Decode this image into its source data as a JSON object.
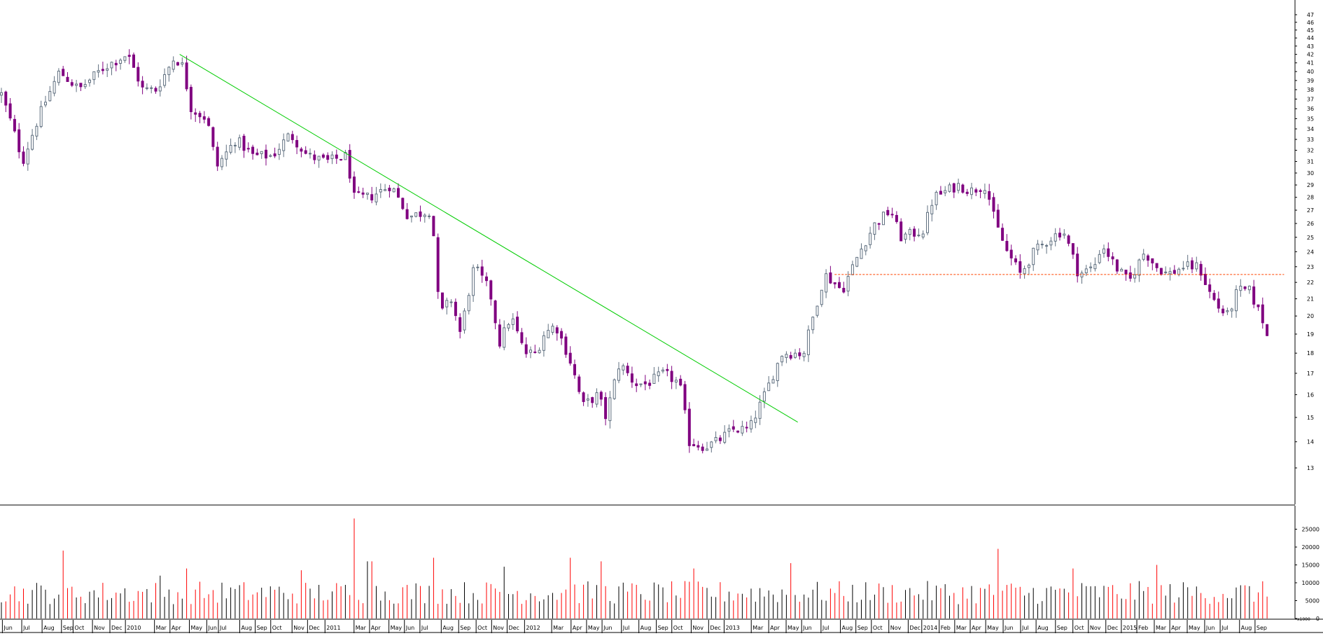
{
  "chart_data": [
    {
      "type": "candlestick",
      "panel": "price",
      "ylim": [
        12,
        47
      ],
      "y_scale": "log",
      "y_ticks": [
        13,
        14,
        15,
        16,
        17,
        18,
        19,
        20,
        21,
        22,
        23,
        24,
        25,
        26,
        27,
        28,
        29,
        30,
        31,
        32,
        33,
        34,
        35,
        36,
        37,
        38,
        39,
        40,
        41,
        42,
        43,
        44,
        45,
        46,
        47
      ],
      "up_color": "#ffffff",
      "down_color": "#800080",
      "anchors": [
        {
          "t": 0,
          "v": 37.5
        },
        {
          "t": 0.6,
          "v": 34
        },
        {
          "t": 1.1,
          "v": 31
        },
        {
          "t": 2.0,
          "v": 35.5
        },
        {
          "t": 3.0,
          "v": 40
        },
        {
          "t": 4.0,
          "v": 38
        },
        {
          "t": 5.3,
          "v": 40.5
        },
        {
          "t": 6.5,
          "v": 42
        },
        {
          "t": 7.3,
          "v": 38
        },
        {
          "t": 8.0,
          "v": 38
        },
        {
          "t": 8.9,
          "v": 41.5
        },
        {
          "t": 9.3,
          "v": 41
        },
        {
          "t": 9.8,
          "v": 36
        },
        {
          "t": 10.6,
          "v": 35
        },
        {
          "t": 11.1,
          "v": 30.5
        },
        {
          "t": 12.1,
          "v": 33
        },
        {
          "t": 13.0,
          "v": 31.5
        },
        {
          "t": 14.0,
          "v": 31.5
        },
        {
          "t": 14.9,
          "v": 33.5
        },
        {
          "t": 15.8,
          "v": 31.5
        },
        {
          "t": 16.8,
          "v": 31
        },
        {
          "t": 17.8,
          "v": 31.5
        },
        {
          "t": 18.2,
          "v": 28
        },
        {
          "t": 19.0,
          "v": 28
        },
        {
          "t": 20.1,
          "v": 29
        },
        {
          "t": 21.0,
          "v": 26.5
        },
        {
          "t": 22.2,
          "v": 27
        },
        {
          "t": 22.6,
          "v": 20
        },
        {
          "t": 23.2,
          "v": 21
        },
        {
          "t": 23.7,
          "v": 19
        },
        {
          "t": 24.4,
          "v": 23
        },
        {
          "t": 25.2,
          "v": 21.5
        },
        {
          "t": 25.7,
          "v": 18.5
        },
        {
          "t": 26.3,
          "v": 20
        },
        {
          "t": 27.0,
          "v": 18
        },
        {
          "t": 27.6,
          "v": 18
        },
        {
          "t": 28.0,
          "v": 19
        },
        {
          "t": 28.6,
          "v": 19.5
        },
        {
          "t": 29.4,
          "v": 17.5
        },
        {
          "t": 30.0,
          "v": 15.5
        },
        {
          "t": 30.8,
          "v": 16
        },
        {
          "t": 31.2,
          "v": 15
        },
        {
          "t": 31.9,
          "v": 17.5
        },
        {
          "t": 32.7,
          "v": 16.5
        },
        {
          "t": 33.3,
          "v": 16.5
        },
        {
          "t": 34.2,
          "v": 17
        },
        {
          "t": 35.0,
          "v": 16.5
        },
        {
          "t": 35.5,
          "v": 14
        },
        {
          "t": 36.3,
          "v": 13.8
        },
        {
          "t": 36.9,
          "v": 14
        },
        {
          "t": 37.8,
          "v": 14.5
        },
        {
          "t": 38.6,
          "v": 14.5
        },
        {
          "t": 39.4,
          "v": 16
        },
        {
          "t": 40.3,
          "v": 18
        },
        {
          "t": 41.4,
          "v": 18
        },
        {
          "t": 41.9,
          "v": 20
        },
        {
          "t": 42.5,
          "v": 22.5
        },
        {
          "t": 43.4,
          "v": 21.5
        },
        {
          "t": 44.3,
          "v": 24
        },
        {
          "t": 45.1,
          "v": 26
        },
        {
          "t": 45.9,
          "v": 27
        },
        {
          "t": 46.4,
          "v": 25
        },
        {
          "t": 47.6,
          "v": 25.5
        },
        {
          "t": 48.1,
          "v": 28
        },
        {
          "t": 49.4,
          "v": 29
        },
        {
          "t": 50.0,
          "v": 28.5
        },
        {
          "t": 50.8,
          "v": 29
        },
        {
          "t": 51.3,
          "v": 26
        },
        {
          "t": 51.9,
          "v": 24
        },
        {
          "t": 52.6,
          "v": 22.5
        },
        {
          "t": 53.3,
          "v": 24
        },
        {
          "t": 54.2,
          "v": 25
        },
        {
          "t": 54.8,
          "v": 25.5
        },
        {
          "t": 55.6,
          "v": 22.5
        },
        {
          "t": 56.4,
          "v": 23
        },
        {
          "t": 56.8,
          "v": 24.5
        },
        {
          "t": 57.5,
          "v": 23
        },
        {
          "t": 58.2,
          "v": 22
        },
        {
          "t": 59.0,
          "v": 24
        },
        {
          "t": 59.6,
          "v": 23
        },
        {
          "t": 60.2,
          "v": 22.5
        },
        {
          "t": 61.0,
          "v": 23
        },
        {
          "t": 61.8,
          "v": 23
        },
        {
          "t": 62.3,
          "v": 21.5
        },
        {
          "t": 62.8,
          "v": 20.5
        },
        {
          "t": 63.3,
          "v": 20
        },
        {
          "t": 63.8,
          "v": 21.5
        },
        {
          "t": 64.4,
          "v": 21.5
        },
        {
          "t": 64.8,
          "v": 20.5
        },
        {
          "t": 65.2,
          "v": 19.5
        },
        {
          "t": 65.5,
          "v": 18
        }
      ],
      "trendlines": [
        {
          "type": "downtrend",
          "color": "#00cc00",
          "from": {
            "t": 9.2,
            "v": 42
          },
          "to": {
            "t": 41.1,
            "v": 14.8
          }
        },
        {
          "type": "horizontal",
          "color": "#ff4500",
          "style": "dashed",
          "from": {
            "t": 43.0,
            "v": 22.5
          },
          "to": {
            "t": 66.2,
            "v": 22.5
          }
        }
      ],
      "x_ticks": [
        {
          "t": 0.05,
          "label": "Jun"
        },
        {
          "t": 1.05,
          "label": "Jul"
        },
        {
          "t": 2.1,
          "label": "Aug"
        },
        {
          "t": 3.1,
          "label": "Sep"
        },
        {
          "t": 3.7,
          "label": "Oct"
        },
        {
          "t": 4.7,
          "label": "Nov"
        },
        {
          "t": 5.6,
          "label": "Dec"
        },
        {
          "t": 6.4,
          "label": "2010"
        },
        {
          "t": 7.9,
          "label": "Mar"
        },
        {
          "t": 8.7,
          "label": "Apr"
        },
        {
          "t": 9.7,
          "label": "May"
        },
        {
          "t": 10.6,
          "label": "Jun"
        },
        {
          "t": 11.2,
          "label": "Jul"
        },
        {
          "t": 12.3,
          "label": "Aug"
        },
        {
          "t": 13.1,
          "label": "Sep"
        },
        {
          "t": 13.9,
          "label": "Oct"
        },
        {
          "t": 15.0,
          "label": "Nov"
        },
        {
          "t": 15.8,
          "label": "Dec"
        },
        {
          "t": 16.7,
          "label": "2011"
        },
        {
          "t": 18.2,
          "label": "Mar"
        },
        {
          "t": 19.0,
          "label": "Apr"
        },
        {
          "t": 20.0,
          "label": "May"
        },
        {
          "t": 20.8,
          "label": "Jun"
        },
        {
          "t": 21.6,
          "label": "Jul"
        },
        {
          "t": 22.7,
          "label": "Aug"
        },
        {
          "t": 23.6,
          "label": "Sep"
        },
        {
          "t": 24.5,
          "label": "Oct"
        },
        {
          "t": 25.3,
          "label": "Nov"
        },
        {
          "t": 26.1,
          "label": "Dec"
        },
        {
          "t": 27.0,
          "label": "2012"
        },
        {
          "t": 28.4,
          "label": "Mar"
        },
        {
          "t": 29.4,
          "label": "Apr"
        },
        {
          "t": 30.2,
          "label": "May"
        },
        {
          "t": 31.0,
          "label": "Jun"
        },
        {
          "t": 32.0,
          "label": "Jul"
        },
        {
          "t": 32.9,
          "label": "Aug"
        },
        {
          "t": 33.8,
          "label": "Sep"
        },
        {
          "t": 34.6,
          "label": "Oct"
        },
        {
          "t": 35.6,
          "label": "Nov"
        },
        {
          "t": 36.5,
          "label": "Dec"
        },
        {
          "t": 37.3,
          "label": "2013"
        },
        {
          "t": 38.7,
          "label": "Mar"
        },
        {
          "t": 39.6,
          "label": "Apr"
        },
        {
          "t": 40.5,
          "label": "May"
        },
        {
          "t": 41.3,
          "label": "Jun"
        },
        {
          "t": 42.3,
          "label": "Jul"
        },
        {
          "t": 43.3,
          "label": "Aug"
        },
        {
          "t": 44.1,
          "label": "Sep"
        },
        {
          "t": 44.9,
          "label": "Oct"
        },
        {
          "t": 45.8,
          "label": "Nov"
        },
        {
          "t": 46.8,
          "label": "Dec"
        },
        {
          "t": 47.5,
          "label": "2014"
        },
        {
          "t": 48.4,
          "label": "Feb"
        },
        {
          "t": 49.2,
          "label": "Mar"
        },
        {
          "t": 50.0,
          "label": "Apr"
        },
        {
          "t": 50.8,
          "label": "May"
        },
        {
          "t": 51.7,
          "label": "Jun"
        },
        {
          "t": 52.6,
          "label": "Jul"
        },
        {
          "t": 53.4,
          "label": "Aug"
        },
        {
          "t": 54.4,
          "label": "Sep"
        },
        {
          "t": 55.3,
          "label": "Oct"
        },
        {
          "t": 56.1,
          "label": "Nov"
        },
        {
          "t": 57.0,
          "label": "Dec"
        },
        {
          "t": 57.8,
          "label": "2015"
        },
        {
          "t": 58.6,
          "label": "Feb"
        },
        {
          "t": 59.5,
          "label": "Mar"
        },
        {
          "t": 60.3,
          "label": "Apr"
        },
        {
          "t": 61.2,
          "label": "May"
        },
        {
          "t": 62.1,
          "label": "Jun"
        },
        {
          "t": 62.9,
          "label": "Jul"
        },
        {
          "t": 63.9,
          "label": "Aug"
        },
        {
          "t": 64.7,
          "label": "Sep"
        }
      ]
    },
    {
      "type": "bar",
      "panel": "volume",
      "ylim": [
        0,
        30000
      ],
      "y_ticks": [
        0,
        5000,
        10000,
        15000,
        20000,
        25000
      ],
      "multiplier_label": "x1000",
      "up_color": "#000000",
      "down_color": "#ff0000",
      "spikes": [
        {
          "t": 3.2,
          "v": 19000
        },
        {
          "t": 8.1,
          "v": 12000
        },
        {
          "t": 9.5,
          "v": 14000
        },
        {
          "t": 15.4,
          "v": 13500
        },
        {
          "t": 18.2,
          "v": 28000
        },
        {
          "t": 19.0,
          "v": 16000
        },
        {
          "t": 22.4,
          "v": 17000
        },
        {
          "t": 25.9,
          "v": 14500
        },
        {
          "t": 29.3,
          "v": 17000
        },
        {
          "t": 31.0,
          "v": 16000
        },
        {
          "t": 35.8,
          "v": 14000
        },
        {
          "t": 40.8,
          "v": 15500
        },
        {
          "t": 51.4,
          "v": 19500
        },
        {
          "t": 55.4,
          "v": 14000
        },
        {
          "t": 59.6,
          "v": 15000
        }
      ]
    }
  ]
}
